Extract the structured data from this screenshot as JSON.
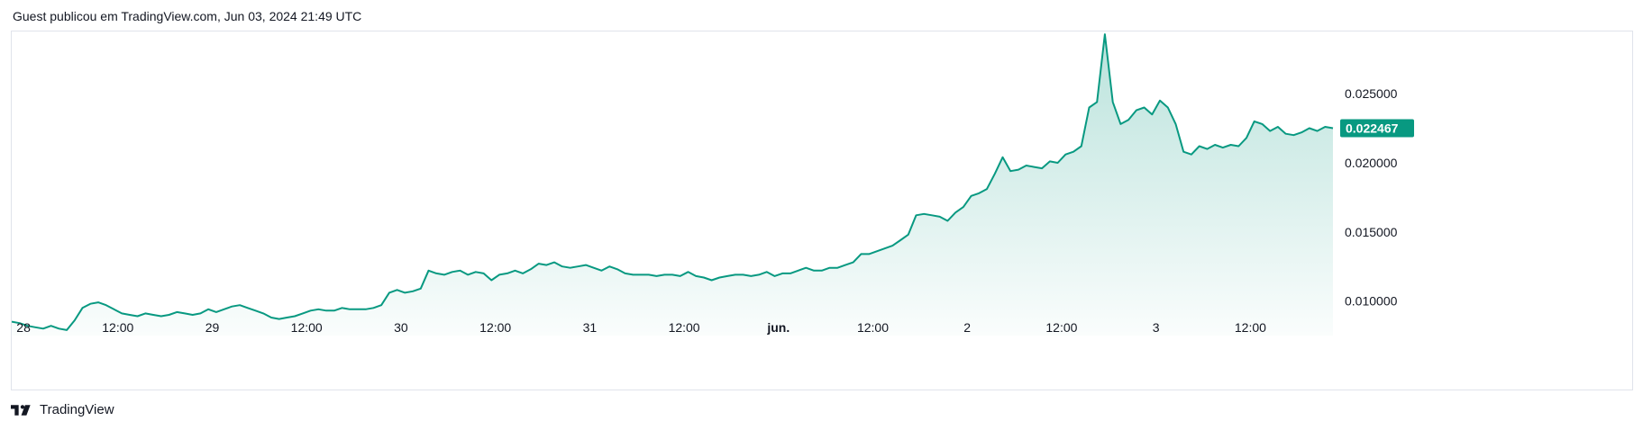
{
  "header": {
    "text": "Guest publicou em TradingView.com, Jun 03, 2024 21:49 UTC"
  },
  "footer": {
    "brand": "TradingView"
  },
  "colors": {
    "line": "#089981",
    "area_top": "#089981",
    "tag_bg": "#089981",
    "border": "#e0e3eb"
  },
  "chart_data": {
    "type": "area",
    "last_value_label": "0.022467",
    "y_ticks": [
      "0.010000",
      "0.015000",
      "0.020000",
      "0.025000"
    ],
    "y_tick_values": [
      0.01,
      0.015,
      0.02,
      0.025
    ],
    "ylim": [
      0.0075,
      0.0295
    ],
    "x_ticks": [
      {
        "label": "28",
        "t": 0,
        "bold": false
      },
      {
        "label": "12:00",
        "t": 12,
        "bold": false
      },
      {
        "label": "29",
        "t": 24,
        "bold": false
      },
      {
        "label": "12:00",
        "t": 36,
        "bold": false
      },
      {
        "label": "30",
        "t": 48,
        "bold": false
      },
      {
        "label": "12:00",
        "t": 60,
        "bold": false
      },
      {
        "label": "31",
        "t": 72,
        "bold": false
      },
      {
        "label": "12:00",
        "t": 84,
        "bold": false
      },
      {
        "label": "jun.",
        "t": 96,
        "bold": true
      },
      {
        "label": "12:00",
        "t": 108,
        "bold": false
      },
      {
        "label": "2",
        "t": 120,
        "bold": false
      },
      {
        "label": "12:00",
        "t": 132,
        "bold": false
      },
      {
        "label": "3",
        "t": 144,
        "bold": false
      },
      {
        "label": "12:00",
        "t": 156,
        "bold": false
      }
    ],
    "xlim": [
      -1.5,
      166.5
    ],
    "series": [
      {
        "points": [
          [
            -1.5,
            0.0085
          ],
          [
            -0.5,
            0.0084
          ],
          [
            0.5,
            0.0082
          ],
          [
            1.5,
            0.0081
          ],
          [
            2.5,
            0.008
          ],
          [
            3.5,
            0.0082
          ],
          [
            4.5,
            0.008
          ],
          [
            5.5,
            0.0079
          ],
          [
            6.5,
            0.0086
          ],
          [
            7.5,
            0.0095
          ],
          [
            8.5,
            0.0098
          ],
          [
            9.5,
            0.0099
          ],
          [
            10.5,
            0.0097
          ],
          [
            11.5,
            0.0094
          ],
          [
            12.5,
            0.0091
          ],
          [
            13.5,
            0.009
          ],
          [
            14.5,
            0.0089
          ],
          [
            15.5,
            0.0091
          ],
          [
            16.5,
            0.009
          ],
          [
            17.5,
            0.0089
          ],
          [
            18.5,
            0.009
          ],
          [
            19.5,
            0.0092
          ],
          [
            20.5,
            0.0091
          ],
          [
            21.5,
            0.009
          ],
          [
            22.5,
            0.0091
          ],
          [
            23.5,
            0.0094
          ],
          [
            24.5,
            0.0092
          ],
          [
            25.5,
            0.0094
          ],
          [
            26.5,
            0.0096
          ],
          [
            27.5,
            0.0097
          ],
          [
            28.5,
            0.0095
          ],
          [
            29.5,
            0.0093
          ],
          [
            30.5,
            0.0091
          ],
          [
            31.5,
            0.0088
          ],
          [
            32.5,
            0.0087
          ],
          [
            33.5,
            0.0088
          ],
          [
            34.5,
            0.0089
          ],
          [
            35.5,
            0.0091
          ],
          [
            36.5,
            0.0093
          ],
          [
            37.5,
            0.0094
          ],
          [
            38.5,
            0.0093
          ],
          [
            39.5,
            0.0093
          ],
          [
            40.5,
            0.0095
          ],
          [
            41.5,
            0.0094
          ],
          [
            42.5,
            0.0094
          ],
          [
            43.5,
            0.0094
          ],
          [
            44.5,
            0.0095
          ],
          [
            45.5,
            0.0097
          ],
          [
            46.5,
            0.0106
          ],
          [
            47.5,
            0.0108
          ],
          [
            48.5,
            0.0106
          ],
          [
            49.5,
            0.0107
          ],
          [
            50.5,
            0.0109
          ],
          [
            51.5,
            0.0122
          ],
          [
            52.5,
            0.012
          ],
          [
            53.5,
            0.0119
          ],
          [
            54.5,
            0.0121
          ],
          [
            55.5,
            0.0122
          ],
          [
            56.5,
            0.0119
          ],
          [
            57.5,
            0.0121
          ],
          [
            58.5,
            0.012
          ],
          [
            59.5,
            0.0115
          ],
          [
            60.5,
            0.0119
          ],
          [
            61.5,
            0.012
          ],
          [
            62.5,
            0.0122
          ],
          [
            63.5,
            0.012
          ],
          [
            64.5,
            0.0123
          ],
          [
            65.5,
            0.0127
          ],
          [
            66.5,
            0.0126
          ],
          [
            67.5,
            0.0128
          ],
          [
            68.5,
            0.0125
          ],
          [
            69.5,
            0.0124
          ],
          [
            70.5,
            0.0125
          ],
          [
            71.5,
            0.0126
          ],
          [
            72.5,
            0.0124
          ],
          [
            73.5,
            0.0122
          ],
          [
            74.5,
            0.0125
          ],
          [
            75.5,
            0.0123
          ],
          [
            76.5,
            0.012
          ],
          [
            77.5,
            0.0119
          ],
          [
            78.5,
            0.0119
          ],
          [
            79.5,
            0.0119
          ],
          [
            80.5,
            0.0118
          ],
          [
            81.5,
            0.0119
          ],
          [
            82.5,
            0.0119
          ],
          [
            83.5,
            0.0118
          ],
          [
            84.5,
            0.0121
          ],
          [
            85.5,
            0.0118
          ],
          [
            86.5,
            0.0117
          ],
          [
            87.5,
            0.0115
          ],
          [
            88.5,
            0.0117
          ],
          [
            89.5,
            0.0118
          ],
          [
            90.5,
            0.0119
          ],
          [
            91.5,
            0.0119
          ],
          [
            92.5,
            0.0118
          ],
          [
            93.5,
            0.0119
          ],
          [
            94.5,
            0.0121
          ],
          [
            95.5,
            0.0118
          ],
          [
            96.5,
            0.012
          ],
          [
            97.5,
            0.012
          ],
          [
            98.5,
            0.0122
          ],
          [
            99.5,
            0.0124
          ],
          [
            100.5,
            0.0122
          ],
          [
            101.5,
            0.0122
          ],
          [
            102.5,
            0.0124
          ],
          [
            103.5,
            0.0124
          ],
          [
            104.5,
            0.0126
          ],
          [
            105.5,
            0.0128
          ],
          [
            106.5,
            0.0134
          ],
          [
            107.5,
            0.0134
          ],
          [
            108.5,
            0.0136
          ],
          [
            109.5,
            0.0138
          ],
          [
            110.5,
            0.014
          ],
          [
            111.5,
            0.0144
          ],
          [
            112.5,
            0.0148
          ],
          [
            113.5,
            0.0162
          ],
          [
            114.5,
            0.0163
          ],
          [
            115.5,
            0.0162
          ],
          [
            116.5,
            0.0161
          ],
          [
            117.5,
            0.0158
          ],
          [
            118.5,
            0.0164
          ],
          [
            119.5,
            0.0168
          ],
          [
            120.5,
            0.0176
          ],
          [
            121.5,
            0.0178
          ],
          [
            122.5,
            0.0181
          ],
          [
            123.5,
            0.0192
          ],
          [
            124.5,
            0.0204
          ],
          [
            125.5,
            0.0194
          ],
          [
            126.5,
            0.0195
          ],
          [
            127.5,
            0.0198
          ],
          [
            128.5,
            0.0197
          ],
          [
            129.5,
            0.0196
          ],
          [
            130.5,
            0.0201
          ],
          [
            131.5,
            0.02
          ],
          [
            132.5,
            0.0206
          ],
          [
            133.5,
            0.0208
          ],
          [
            134.5,
            0.0212
          ],
          [
            135.5,
            0.024
          ],
          [
            136.5,
            0.0244
          ],
          [
            137.5,
            0.0293
          ],
          [
            138.5,
            0.0244
          ],
          [
            139.5,
            0.0228
          ],
          [
            140.5,
            0.0231
          ],
          [
            141.5,
            0.0238
          ],
          [
            142.5,
            0.024
          ],
          [
            143.5,
            0.0235
          ],
          [
            144.5,
            0.0245
          ],
          [
            145.5,
            0.024
          ],
          [
            146.5,
            0.0228
          ],
          [
            147.5,
            0.0208
          ],
          [
            148.5,
            0.0206
          ],
          [
            149.5,
            0.0212
          ],
          [
            150.5,
            0.021
          ],
          [
            151.5,
            0.0213
          ],
          [
            152.5,
            0.0211
          ],
          [
            153.5,
            0.0213
          ],
          [
            154.5,
            0.0212
          ],
          [
            155.5,
            0.0218
          ],
          [
            156.5,
            0.023
          ],
          [
            157.5,
            0.0228
          ],
          [
            158.5,
            0.0223
          ],
          [
            159.5,
            0.0226
          ],
          [
            160.5,
            0.0221
          ],
          [
            161.5,
            0.022
          ],
          [
            162.5,
            0.0222
          ],
          [
            163.5,
            0.0225
          ],
          [
            164.5,
            0.0223
          ],
          [
            165.5,
            0.0226
          ],
          [
            166.5,
            0.0225
          ]
        ]
      }
    ]
  }
}
